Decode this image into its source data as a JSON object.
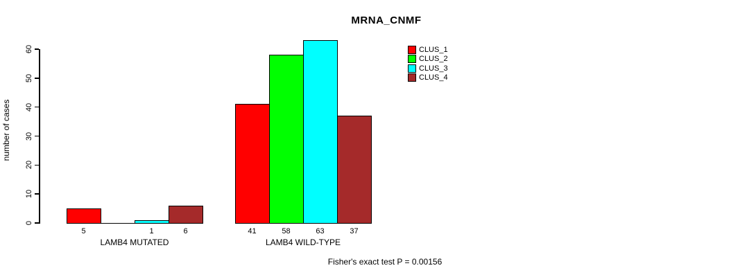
{
  "title": "MRNA_CNMF",
  "footer": "Fisher's exact test P = 0.00156",
  "chart_data": {
    "type": "bar",
    "title": "MRNA_CNMF",
    "xlabel": "",
    "ylabel": "number of cases",
    "ylim": [
      0,
      63
    ],
    "yticks": [
      0,
      10,
      20,
      30,
      40,
      50,
      60
    ],
    "grid": false,
    "legend_position": "top-right",
    "categories": [
      "LAMB4 MUTATED",
      "LAMB4 WILD-TYPE"
    ],
    "series": [
      {
        "name": "CLUS_1",
        "color": "#FF0000",
        "values": [
          5,
          41
        ]
      },
      {
        "name": "CLUS_2",
        "color": "#00FF00",
        "values": [
          0,
          58
        ]
      },
      {
        "name": "CLUS_3",
        "color": "#00FFFF",
        "values": [
          1,
          63
        ]
      },
      {
        "name": "CLUS_4",
        "color": "#A52A2A",
        "values": [
          6,
          37
        ]
      }
    ],
    "bar_value_labels": [
      [
        "5",
        "",
        "1",
        "6"
      ],
      [
        "41",
        "58",
        "63",
        "37"
      ]
    ],
    "annotation": "Fisher's exact test P = 0.00156"
  }
}
